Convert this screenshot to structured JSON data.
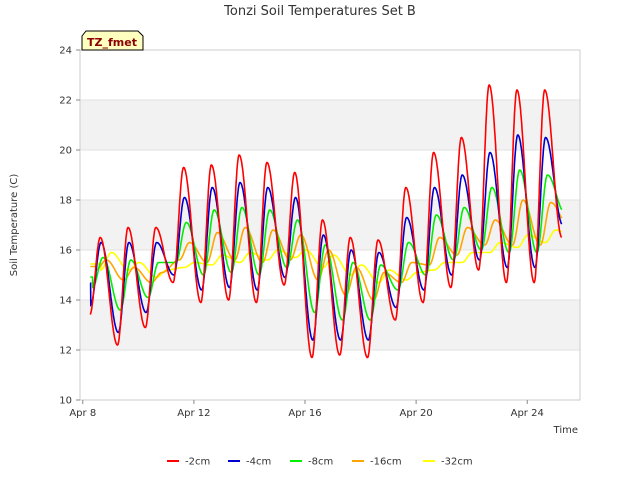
{
  "chart_data": {
    "type": "line",
    "title": "Tonzi Soil Temperatures Set B",
    "xlabel": "Time",
    "ylabel": "Soil Temperature (C)",
    "site_label": "TZ_fmet",
    "xlim": [
      7.9,
      25.9
    ],
    "ylim": [
      10,
      24
    ],
    "x_ticks": [
      8,
      12,
      16,
      20,
      24
    ],
    "x_tick_labels": [
      "Apr 8",
      "Apr 12",
      "Apr 16",
      "Apr 20",
      "Apr 24"
    ],
    "y_ticks": [
      10,
      12,
      14,
      16,
      18,
      20,
      22,
      24
    ],
    "y_tick_labels": [
      "10",
      "12",
      "14",
      "16",
      "18",
      "20",
      "22",
      "24"
    ],
    "grid": "horizontal bands",
    "legend_position": "bottom",
    "days": [
      8,
      9,
      10,
      11,
      12,
      13,
      14,
      15,
      16,
      17,
      18,
      19,
      20,
      21,
      22,
      23,
      24,
      25
    ],
    "series": [
      {
        "name": "-2cm",
        "color": "#ff0000",
        "daily_max": [
          16.5,
          16.9,
          16.9,
          19.3,
          19.4,
          19.8,
          19.5,
          19.1,
          17.2,
          16.5,
          16.4,
          18.5,
          19.9,
          20.5,
          22.6,
          22.4,
          22.4,
          22.8
        ],
        "daily_min": [
          13.4,
          12.2,
          12.9,
          14.7,
          13.9,
          14.0,
          13.9,
          14.6,
          11.7,
          11.8,
          11.7,
          13.2,
          13.9,
          14.5,
          15.2,
          14.7,
          14.7,
          16.5
        ]
      },
      {
        "name": "-4cm",
        "color": "#0000cc",
        "daily_max": [
          16.3,
          16.3,
          16.3,
          18.1,
          18.5,
          18.7,
          18.5,
          18.1,
          16.6,
          16.0,
          15.9,
          17.3,
          18.5,
          19.0,
          19.9,
          20.6,
          20.5,
          20.9
        ],
        "daily_min": [
          13.8,
          12.7,
          13.5,
          15.0,
          14.4,
          14.5,
          14.4,
          14.9,
          12.4,
          12.4,
          12.4,
          13.7,
          14.4,
          15.0,
          15.6,
          15.3,
          15.3,
          17.0
        ]
      },
      {
        "name": "-8cm",
        "color": "#00ee00",
        "daily_max": [
          15.7,
          15.6,
          15.5,
          17.1,
          17.6,
          17.7,
          17.6,
          17.2,
          16.2,
          15.5,
          15.4,
          16.3,
          17.4,
          17.7,
          18.5,
          19.2,
          19.0,
          19.3
        ],
        "daily_min": [
          14.5,
          13.6,
          14.1,
          15.5,
          15.0,
          15.1,
          15.0,
          15.3,
          13.5,
          13.2,
          13.2,
          14.4,
          15.0,
          15.6,
          16.0,
          15.9,
          15.9,
          17.5
        ]
      },
      {
        "name": "-16cm",
        "color": "#ffa500",
        "daily_max": [
          15.6,
          15.3,
          15.1,
          16.3,
          16.7,
          16.9,
          16.8,
          16.6,
          16.0,
          15.3,
          15.1,
          15.5,
          16.5,
          16.9,
          17.2,
          18.0,
          17.9,
          18.2
        ],
        "daily_min": [
          15.2,
          14.8,
          14.7,
          15.6,
          15.5,
          15.6,
          15.5,
          15.6,
          14.8,
          14.2,
          14.0,
          14.7,
          15.4,
          15.8,
          16.2,
          16.2,
          16.2,
          17.0
        ]
      },
      {
        "name": "-32cm",
        "color": "#ffff00",
        "daily_max": [
          15.9,
          15.5,
          15.2,
          15.5,
          15.8,
          15.9,
          16.0,
          16.0,
          15.8,
          15.4,
          15.2,
          15.1,
          15.5,
          15.9,
          16.3,
          16.6,
          16.8,
          17.0
        ],
        "daily_min": [
          15.2,
          15.2,
          14.9,
          15.3,
          15.4,
          15.5,
          15.6,
          15.7,
          15.3,
          15.0,
          14.7,
          14.8,
          15.2,
          15.5,
          15.9,
          16.1,
          16.3,
          16.5
        ]
      }
    ]
  }
}
